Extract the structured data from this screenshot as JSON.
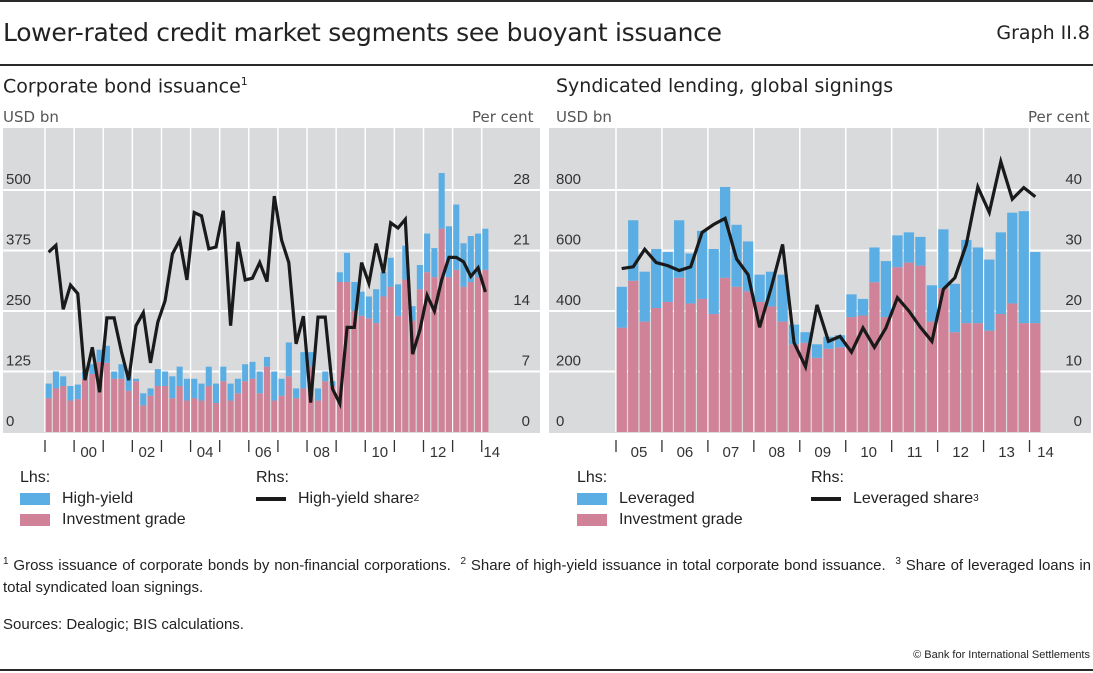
{
  "header": {
    "title": "Lower-rated credit market segments see buoyant issuance",
    "graph_number": "Graph II.8"
  },
  "colors": {
    "plot_bg": "#d9dadc",
    "grid": "#ffffff",
    "high_yield": "#5aaee3",
    "investment_grade": "#d08398",
    "line": "#1a1a1a"
  },
  "chart_data": [
    {
      "type": "bar",
      "stacked": true,
      "title": "Corporate bond issuance",
      "title_footnote": "1",
      "ylabel_left": "USD bn",
      "ylabel_right": "Per cent",
      "ylim_left": [
        0,
        625
      ],
      "ylim_right": [
        0,
        35
      ],
      "yticks_left": [
        "0",
        "125",
        "250",
        "375",
        "500"
      ],
      "yticks_right": [
        "0",
        "7",
        "14",
        "21",
        "28"
      ],
      "xtick_labels": [
        "00",
        "02",
        "04",
        "06",
        "08",
        "10",
        "12",
        "14"
      ],
      "frequency": "quarterly",
      "x_start": "1999Q1",
      "grid": true,
      "series": [
        {
          "name": "Investment grade",
          "axis": "left",
          "values": [
            70,
            90,
            95,
            65,
            68,
            110,
            120,
            145,
            143,
            110,
            110,
            85,
            105,
            55,
            75,
            95,
            95,
            70,
            95,
            65,
            70,
            65,
            95,
            60,
            105,
            65,
            80,
            105,
            110,
            80,
            135,
            65,
            75,
            115,
            70,
            90,
            135,
            65,
            105,
            95,
            310,
            310,
            250,
            240,
            235,
            225,
            280,
            300,
            240,
            315,
            230,
            295,
            330,
            320,
            420,
            320,
            335,
            300,
            310,
            320,
            335
          ]
        },
        {
          "name": "High-yield",
          "axis": "left",
          "values": [
            30,
            35,
            20,
            30,
            30,
            15,
            20,
            25,
            35,
            15,
            30,
            40,
            5,
            25,
            15,
            35,
            30,
            45,
            40,
            45,
            40,
            35,
            40,
            40,
            30,
            35,
            30,
            35,
            35,
            45,
            20,
            60,
            35,
            70,
            20,
            75,
            30,
            25,
            20,
            10,
            20,
            60,
            60,
            50,
            45,
            70,
            50,
            60,
            65,
            70,
            30,
            50,
            80,
            60,
            115,
            105,
            135,
            90,
            95,
            90,
            85
          ]
        },
        {
          "name": "High-yield share",
          "axis": "right",
          "type": "line",
          "values": [
            20.8,
            21.6,
            14.2,
            17.0,
            16.0,
            6.0,
            9.8,
            4.6,
            13.2,
            13.2,
            9.3,
            6.0,
            12.3,
            13.8,
            8.0,
            12.7,
            15.2,
            20.6,
            22.2,
            17.6,
            25.4,
            25.0,
            21.2,
            21.4,
            25.6,
            12.3,
            22.0,
            17.6,
            17.8,
            19.6,
            17.4,
            27.3,
            22.2,
            19.6,
            10.2,
            13.4,
            3.4,
            13.3,
            13.3,
            5.0,
            3.3,
            12.1,
            12.1,
            19.6,
            17.2,
            21.8,
            18.4,
            24.2,
            23.6,
            24.6,
            9.0,
            11.8,
            15.8,
            14.0,
            17.6,
            20.2,
            20.2,
            19.7,
            18.0,
            19.0,
            16.2
          ]
        }
      ]
    },
    {
      "type": "bar",
      "stacked": true,
      "title": "Syndicated lending, global signings",
      "title_footnote": "",
      "ylabel_left": "USD bn",
      "ylabel_right": "Per cent",
      "ylim_left": [
        0,
        1000
      ],
      "ylim_right": [
        0,
        50
      ],
      "yticks_left": [
        "0",
        "200",
        "400",
        "600",
        "800"
      ],
      "yticks_right": [
        "0",
        "10",
        "20",
        "30",
        "40"
      ],
      "xtick_labels": [
        "05",
        "06",
        "07",
        "08",
        "09",
        "10",
        "11",
        "12",
        "13",
        "14"
      ],
      "frequency": "quarterly",
      "x_start": "2005Q1",
      "grid": true,
      "series": [
        {
          "name": "Investment grade",
          "axis": "left",
          "values": [
            345,
            500,
            365,
            410,
            430,
            510,
            425,
            440,
            390,
            510,
            480,
            465,
            430,
            415,
            365,
            290,
            295,
            245,
            275,
            280,
            380,
            385,
            495,
            380,
            545,
            560,
            550,
            365,
            475,
            330,
            360,
            360,
            335,
            390,
            425,
            360,
            360
          ]
        },
        {
          "name": "Leveraged",
          "axis": "left",
          "values": [
            135,
            200,
            165,
            195,
            165,
            190,
            165,
            225,
            215,
            300,
            205,
            165,
            90,
            115,
            155,
            65,
            35,
            45,
            40,
            40,
            75,
            55,
            115,
            185,
            105,
            100,
            95,
            120,
            195,
            160,
            275,
            250,
            235,
            270,
            300,
            370,
            235
          ]
        },
        {
          "name": "Leveraged share",
          "axis": "right",
          "type": "line",
          "values": [
            27.0,
            27.3,
            30.2,
            28.0,
            27.5,
            26.7,
            27.3,
            33.0,
            34.3,
            35.3,
            28.6,
            26.0,
            17.3,
            23.8,
            31.0,
            14.8,
            10.8,
            21.0,
            15.0,
            15.8,
            13.2,
            17.2,
            14.0,
            17.2,
            22.2,
            20.0,
            17.3,
            15.0,
            23.6,
            25.5,
            31.0,
            40.5,
            36.3,
            44.7,
            38.5,
            40.4,
            38.9
          ]
        }
      ]
    }
  ],
  "legends": {
    "left": {
      "lhs_label": "Lhs:",
      "rhs_label": "Rhs:",
      "bar1": "High-yield",
      "bar2": "Investment grade",
      "line": "High-yield share",
      "line_footnote": "2"
    },
    "right": {
      "lhs_label": "Lhs:",
      "rhs_label": "Rhs:",
      "bar1": "Leveraged",
      "bar2": "Investment grade",
      "line": "Leveraged share",
      "line_footnote": "3"
    }
  },
  "footnotes": {
    "n1": "1",
    "t1": "Gross issuance of corporate bonds by non-financial corporations.",
    "n2": "2",
    "t2": "Share of high-yield issuance in total corporate bond issuance.",
    "n3": "3",
    "t3": "Share of leveraged loans in total syndicated loan signings."
  },
  "sources": "Sources: Dealogic; BIS calculations.",
  "copyright": "© Bank for International Settlements"
}
